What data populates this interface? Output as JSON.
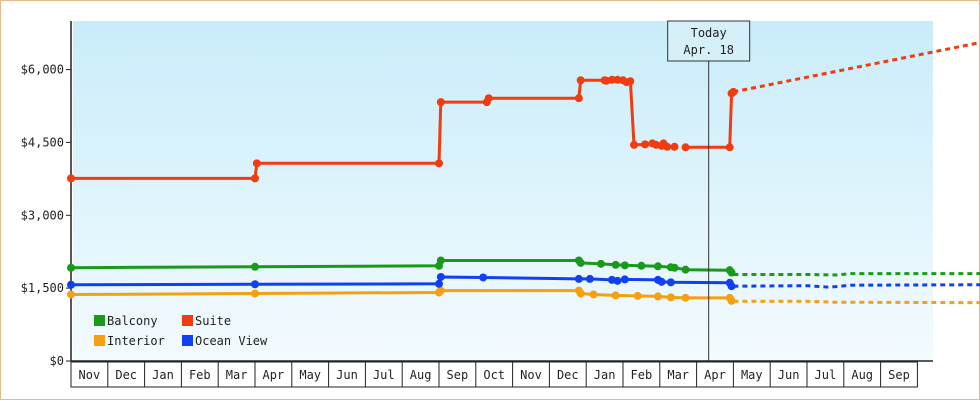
{
  "chart_data": {
    "type": "line",
    "title": "",
    "xlabel": "",
    "ylabel": "",
    "ylim": [
      0,
      7000
    ],
    "y_ticks": [
      0,
      1500,
      3000,
      4500,
      6000
    ],
    "y_tick_labels": [
      "$0",
      "$1,500",
      "$3,000",
      "$4,500",
      "$6,000"
    ],
    "x_months": [
      "Nov",
      "Dec",
      "Jan",
      "Feb",
      "Mar",
      "Apr",
      "May",
      "Jun",
      "Jul",
      "Aug",
      "Sep",
      "Oct",
      "Nov",
      "Dec",
      "Jan",
      "Feb",
      "Mar",
      "Apr",
      "May",
      "Jun",
      "Jul",
      "Aug",
      "Sep"
    ],
    "grid": false,
    "legend_position": "bottom-left",
    "today": {
      "label": "Today",
      "date": "Apr. 18",
      "month_pos": 17.6
    },
    "series": [
      {
        "name": "Balcony",
        "color": "#1a9a1a",
        "points": [
          [
            0.0,
            1920
          ],
          [
            5.0,
            1940
          ],
          [
            10.0,
            1960
          ],
          [
            10.05,
            2070
          ],
          [
            13.8,
            2070
          ],
          [
            13.85,
            2020
          ],
          [
            14.4,
            2000
          ],
          [
            14.8,
            1980
          ],
          [
            15.05,
            1970
          ],
          [
            15.5,
            1960
          ],
          [
            15.95,
            1950
          ],
          [
            16.3,
            1930
          ],
          [
            16.4,
            1920
          ],
          [
            16.7,
            1880
          ],
          [
            17.9,
            1870
          ],
          [
            17.95,
            1820
          ]
        ],
        "forecast": [
          [
            18.0,
            1780
          ],
          [
            20.0,
            1780
          ],
          [
            20.8,
            1770
          ],
          [
            21.2,
            1800
          ],
          [
            25.0,
            1800
          ]
        ]
      },
      {
        "name": "Suite",
        "color": "#f03c10",
        "points": [
          [
            0.0,
            3760
          ],
          [
            5.0,
            3760
          ],
          [
            5.05,
            4070
          ],
          [
            10.0,
            4070
          ],
          [
            10.05,
            5330
          ],
          [
            11.3,
            5330
          ],
          [
            11.35,
            5410
          ],
          [
            13.8,
            5410
          ],
          [
            13.85,
            5780
          ],
          [
            14.5,
            5780
          ],
          [
            14.55,
            5770
          ],
          [
            14.7,
            5790
          ],
          [
            14.85,
            5790
          ],
          [
            15.0,
            5780
          ],
          [
            15.1,
            5740
          ],
          [
            15.2,
            5760
          ],
          [
            15.3,
            4450
          ],
          [
            15.6,
            4460
          ],
          [
            15.8,
            4480
          ],
          [
            15.9,
            4450
          ],
          [
            16.05,
            4430
          ],
          [
            16.1,
            4480
          ],
          [
            16.2,
            4410
          ],
          [
            16.4,
            4410
          ]
        ],
        "points_b": [
          [
            16.7,
            4400
          ],
          [
            17.9,
            4400
          ],
          [
            17.95,
            5510
          ],
          [
            18.0,
            5540
          ]
        ],
        "forecast": [
          [
            18.0,
            5540
          ],
          [
            25.0,
            6600
          ]
        ]
      },
      {
        "name": "Interior",
        "color": "#f4a010",
        "points": [
          [
            0.0,
            1370
          ],
          [
            5.0,
            1390
          ],
          [
            10.0,
            1410
          ],
          [
            10.05,
            1450
          ],
          [
            13.8,
            1450
          ],
          [
            13.85,
            1390
          ],
          [
            14.2,
            1370
          ],
          [
            14.8,
            1350
          ],
          [
            15.4,
            1340
          ],
          [
            15.95,
            1330
          ],
          [
            16.3,
            1310
          ],
          [
            16.7,
            1300
          ],
          [
            17.9,
            1300
          ],
          [
            17.95,
            1240
          ]
        ],
        "forecast": [
          [
            18.0,
            1230
          ],
          [
            20.0,
            1230
          ],
          [
            20.8,
            1210
          ],
          [
            25.0,
            1200
          ]
        ]
      },
      {
        "name": "Ocean View",
        "color": "#1040f0",
        "points": [
          [
            0.0,
            1570
          ],
          [
            5.0,
            1580
          ],
          [
            10.0,
            1590
          ],
          [
            10.05,
            1730
          ],
          [
            11.2,
            1720
          ],
          [
            13.8,
            1690
          ],
          [
            14.1,
            1690
          ],
          [
            14.7,
            1670
          ],
          [
            14.85,
            1650
          ],
          [
            15.05,
            1680
          ],
          [
            15.95,
            1670
          ],
          [
            16.05,
            1630
          ],
          [
            16.3,
            1620
          ],
          [
            17.9,
            1610
          ],
          [
            17.95,
            1540
          ]
        ],
        "forecast": [
          [
            18.0,
            1540
          ],
          [
            20.0,
            1550
          ],
          [
            20.6,
            1520
          ],
          [
            21.2,
            1560
          ],
          [
            25.0,
            1570
          ]
        ]
      }
    ]
  }
}
